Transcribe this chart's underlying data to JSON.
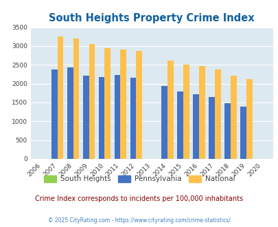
{
  "title": "South Heights Property Crime Index",
  "title_color": "#1060a0",
  "years": [
    2006,
    2007,
    2008,
    2009,
    2010,
    2011,
    2012,
    2013,
    2014,
    2015,
    2016,
    2017,
    2018,
    2019,
    2020
  ],
  "south_heights": [
    0,
    0,
    0,
    0,
    0,
    0,
    0,
    0,
    0,
    0,
    0,
    0,
    0,
    0,
    0
  ],
  "pennsylvania": [
    0,
    2370,
    2440,
    2210,
    2185,
    2230,
    2155,
    0,
    1940,
    1795,
    1720,
    1645,
    1490,
    1385,
    0
  ],
  "national": [
    0,
    3260,
    3200,
    3050,
    2950,
    2900,
    2870,
    0,
    2610,
    2500,
    2475,
    2380,
    2210,
    2115,
    0
  ],
  "bar_width": 0.38,
  "pennsylvania_color": "#4472c4",
  "national_color": "#ffc04c",
  "south_heights_color": "#92d050",
  "bg_color": "#dce9f0",
  "ylim": [
    0,
    3500
  ],
  "yticks": [
    0,
    500,
    1000,
    1500,
    2000,
    2500,
    3000,
    3500
  ],
  "grid_color": "#ffffff",
  "subtitle": "Crime Index corresponds to incidents per 100,000 inhabitants",
  "subtitle_color": "#800000",
  "footer": "© 2025 CityRating.com - https://www.cityrating.com/crime-statistics/",
  "footer_color": "#4080c0",
  "legend_labels": [
    "South Heights",
    "Pennsylvania",
    "National"
  ],
  "xlabel_color": "#404040",
  "ylabel_color": "#404040",
  "xlim": [
    2005.3,
    2020.7
  ]
}
